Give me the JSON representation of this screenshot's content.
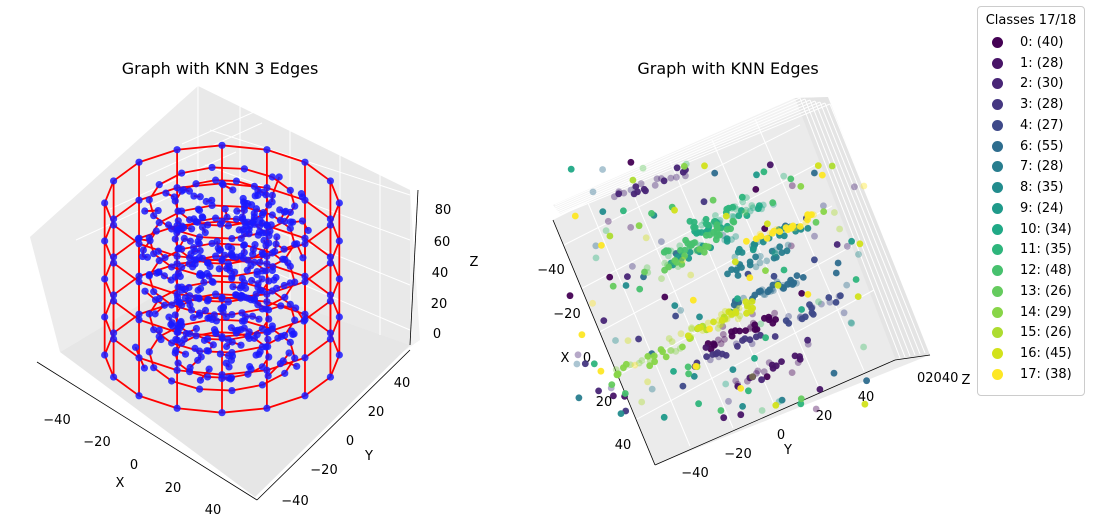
{
  "chart_data": [
    {
      "type": "scatter",
      "title": "Graph with KNN 3 Edges",
      "xlabel": "X",
      "ylabel": "Y",
      "zlabel": "Z",
      "x_ticks": [
        "−40",
        "−20",
        "0",
        "20",
        "40"
      ],
      "y_ticks": [
        "−40",
        "−20",
        "0",
        "20",
        "40"
      ],
      "z_ticks": [
        "0",
        "20",
        "40",
        "60",
        "80"
      ],
      "xlim": [
        -50,
        50
      ],
      "ylim": [
        -50,
        50
      ],
      "zlim": [
        0,
        90
      ],
      "node_color": "#1a1aff",
      "edge_color": "#ff0000",
      "outer_ring_radius": 45,
      "outer_ring_levels": [
        0,
        20,
        40,
        60,
        80
      ],
      "grid": true
    },
    {
      "type": "scatter",
      "title": "Graph with KNN Edges",
      "xlabel": "X",
      "ylabel": "Y",
      "zlabel": "Z",
      "x_ticks": [
        "−40",
        "−20",
        "0",
        "20",
        "40"
      ],
      "y_ticks": [
        "−40",
        "−20",
        "0",
        "20",
        "40"
      ],
      "z_ticks_overlapped": "02040",
      "xlim": [
        -50,
        50
      ],
      "ylim": [
        -50,
        50
      ],
      "colormap": "viridis",
      "grid": true,
      "legend": {
        "title": "Classes 17/18",
        "placement": "outside-right",
        "entries": [
          {
            "label": "0: (40)",
            "color": "#440154"
          },
          {
            "label": "1: (28)",
            "color": "#481467"
          },
          {
            "label": "2: (30)",
            "color": "#482576"
          },
          {
            "label": "3: (28)",
            "color": "#453781"
          },
          {
            "label": "4: (27)",
            "color": "#3e4989"
          },
          {
            "label": "6: (55)",
            "color": "#2e6d8e"
          },
          {
            "label": "7: (28)",
            "color": "#287d8e"
          },
          {
            "label": "8: (35)",
            "color": "#228c8d"
          },
          {
            "label": "9: (24)",
            "color": "#1f9a8a"
          },
          {
            "label": "10: (34)",
            "color": "#20a986"
          },
          {
            "label": "11: (35)",
            "color": "#2eb57c"
          },
          {
            "label": "12: (48)",
            "color": "#47c16e"
          },
          {
            "label": "13: (26)",
            "color": "#65cb5e"
          },
          {
            "label": "14: (29)",
            "color": "#88d548"
          },
          {
            "label": "15: (26)",
            "color": "#addc30"
          },
          {
            "label": "16: (45)",
            "color": "#d2e21b"
          },
          {
            "label": "17: (38)",
            "color": "#fde725"
          }
        ]
      }
    }
  ]
}
